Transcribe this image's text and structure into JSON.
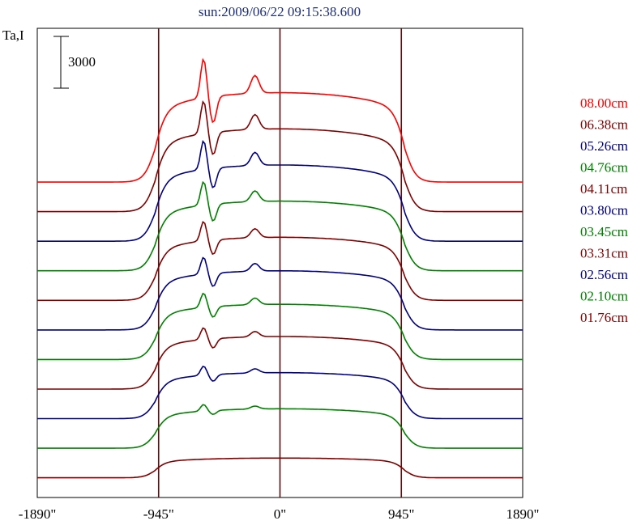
{
  "chart_data": {
    "type": "line",
    "title": "sun:2009/06/22 09:15:38.600",
    "ylabel": "Ta,I",
    "xlabel": "",
    "xlim": [
      -1890,
      1890
    ],
    "x_ticks": [
      -1890,
      -945,
      0,
      945,
      1890
    ],
    "x_tick_labels": [
      "-1890\"",
      "-945\"",
      "0\"",
      "945\"",
      "1890\""
    ],
    "vertical_lines": [
      -945,
      0,
      945
    ],
    "scale_bar": {
      "label": "3000",
      "value": 3000
    },
    "ylim": [
      0,
      35700
    ],
    "grid": false,
    "legend_position": "right",
    "series": [
      {
        "name": "01.76cm",
        "color": "#800000",
        "baseline": 1500,
        "peak": 1500,
        "bump": 0,
        "dip": 0
      },
      {
        "name": "02.10cm",
        "color": "#008000",
        "baseline": 3750,
        "peak": 3000,
        "bump": 500,
        "dip": 300
      },
      {
        "name": "02.56cm",
        "color": "#000080",
        "baseline": 6000,
        "peak": 3500,
        "bump": 700,
        "dip": 500
      },
      {
        "name": "03.31cm",
        "color": "#800000",
        "baseline": 8250,
        "peak": 4000,
        "bump": 900,
        "dip": 700
      },
      {
        "name": "03.45cm",
        "color": "#008000",
        "baseline": 10500,
        "peak": 4200,
        "bump": 1100,
        "dip": 800
      },
      {
        "name": "03.80cm",
        "color": "#000080",
        "baseline": 12750,
        "peak": 4500,
        "bump": 1300,
        "dip": 1000
      },
      {
        "name": "04.11cm",
        "color": "#800000",
        "baseline": 15000,
        "peak": 4800,
        "bump": 1500,
        "dip": 1100
      },
      {
        "name": "04.76cm",
        "color": "#008000",
        "baseline": 17250,
        "peak": 5300,
        "bump": 1800,
        "dip": 1300
      },
      {
        "name": "05.26cm",
        "color": "#000080",
        "baseline": 19500,
        "peak": 5800,
        "bump": 2200,
        "dip": 1500
      },
      {
        "name": "06.38cm",
        "color": "#800000",
        "baseline": 21750,
        "peak": 6300,
        "bump": 2500,
        "dip": 1700
      },
      {
        "name": "08.00cm",
        "color": "#ff0000",
        "baseline": 24000,
        "peak": 6800,
        "bump": 3000,
        "dip": 2000
      }
    ]
  }
}
